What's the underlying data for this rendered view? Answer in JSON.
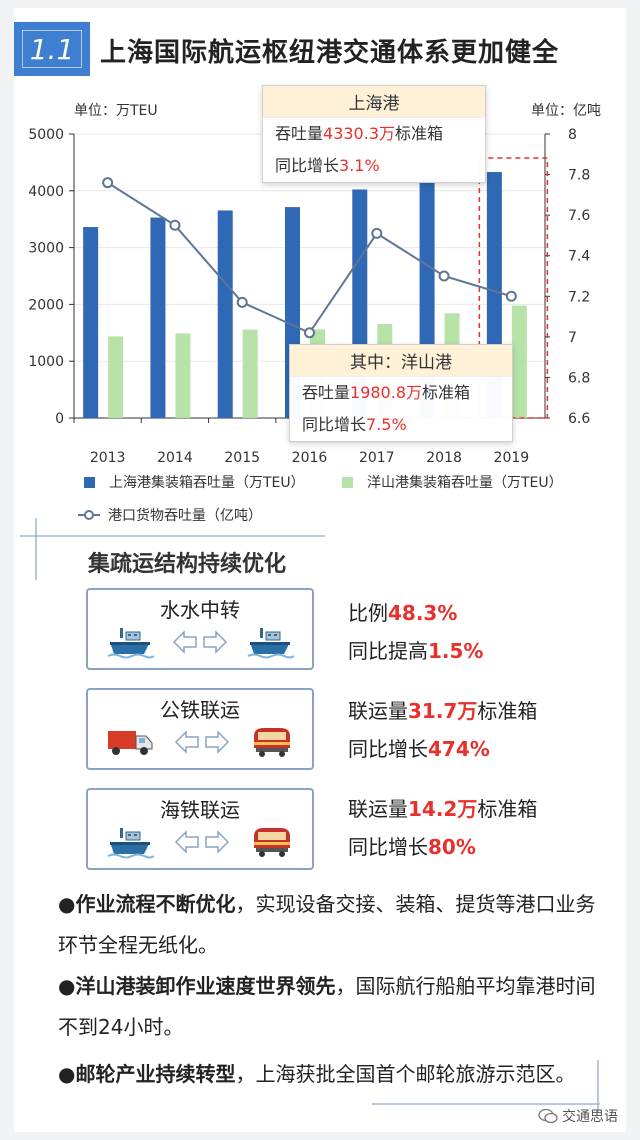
{
  "header": {
    "badge": "1.1",
    "title": "上海国际航运枢纽港交通体系更加健全"
  },
  "chart_data": {
    "type": "bar",
    "categories": [
      "2013",
      "2014",
      "2015",
      "2016",
      "2017",
      "2018",
      "2019"
    ],
    "series": [
      {
        "name": "上海港集装箱吞吐量（万TEU）",
        "kind": "bar",
        "axis": "left",
        "color": "#2f68b4",
        "values": [
          3362,
          3529,
          3654,
          3713,
          4023,
          4201,
          4330.3
        ]
      },
      {
        "name": "洋山港集装箱吞吐量（万TEU）",
        "kind": "bar",
        "axis": "left",
        "color": "#b7e3a8",
        "values": [
          1436,
          1490,
          1556,
          1561,
          1655,
          1843,
          1980.8
        ]
      },
      {
        "name": "港口货物吞吐量（亿吨）",
        "kind": "line",
        "axis": "right",
        "color": "#5f7596",
        "values": [
          7.76,
          7.55,
          7.17,
          7.02,
          7.51,
          7.3,
          7.2
        ]
      }
    ],
    "left_unit": "单位：万TEU",
    "right_unit": "单位：亿吨",
    "left_ticks": [
      "0",
      "1000",
      "2000",
      "3000",
      "4000",
      "5000"
    ],
    "right_ticks": [
      "6.6",
      "6.8",
      "7",
      "7.2",
      "7.4",
      "7.6",
      "7.8",
      "8"
    ],
    "ylim_left": [
      0,
      5000
    ],
    "ylim_right": [
      6.6,
      8.0
    ],
    "grid": true,
    "highlight_category": "2019"
  },
  "tooltip_main": {
    "title": "上海港",
    "l1_a": "吞吐量",
    "l1_b": "4330.3万",
    "l1_c": "标准箱",
    "l2_a": "同比增长",
    "l2_b": "3.1%"
  },
  "tooltip_yang": {
    "title": "其中：洋山港",
    "l1_a": "吞吐量",
    "l1_b": "1980.8万",
    "l1_c": "标准箱",
    "l2_a": "同比增长",
    "l2_b": "7.5%"
  },
  "section": {
    "title": "集疏运结构持续优化"
  },
  "modes": [
    {
      "label": "水水中转",
      "s1_a": "比例",
      "s1_b": "48.3%",
      "s1_c": "",
      "s2_a": "同比提高",
      "s2_b": "1.5%"
    },
    {
      "label": "公铁联运",
      "s1_a": "联运量",
      "s1_b": "31.7万",
      "s1_c": "标准箱",
      "s2_a": "同比增长",
      "s2_b": "474%"
    },
    {
      "label": "海铁联运",
      "s1_a": "联运量",
      "s1_b": "14.2万",
      "s1_c": "标准箱",
      "s2_a": "同比增长",
      "s2_b": "80%"
    }
  ],
  "paragraphs": [
    {
      "bold": "●作业流程不断优化",
      "rest": "，实现设备交接、装箱、提货等港口业务环节全程无纸化。"
    },
    {
      "bold": "●洋山港装卸作业速度世界领先",
      "rest": "，国际航行船舶平均靠港时间不到24小时。"
    },
    {
      "bold": "●邮轮产业持续转型",
      "rest": "，上海获批全国首个邮轮旅游示范区。"
    }
  ],
  "watermark": "交通思语",
  "icons": {
    "ship": "ship-icon",
    "truck": "truck-icon",
    "train": "train-icon",
    "arrows": "double-arrow-icon",
    "wechat": "wechat-icon"
  }
}
